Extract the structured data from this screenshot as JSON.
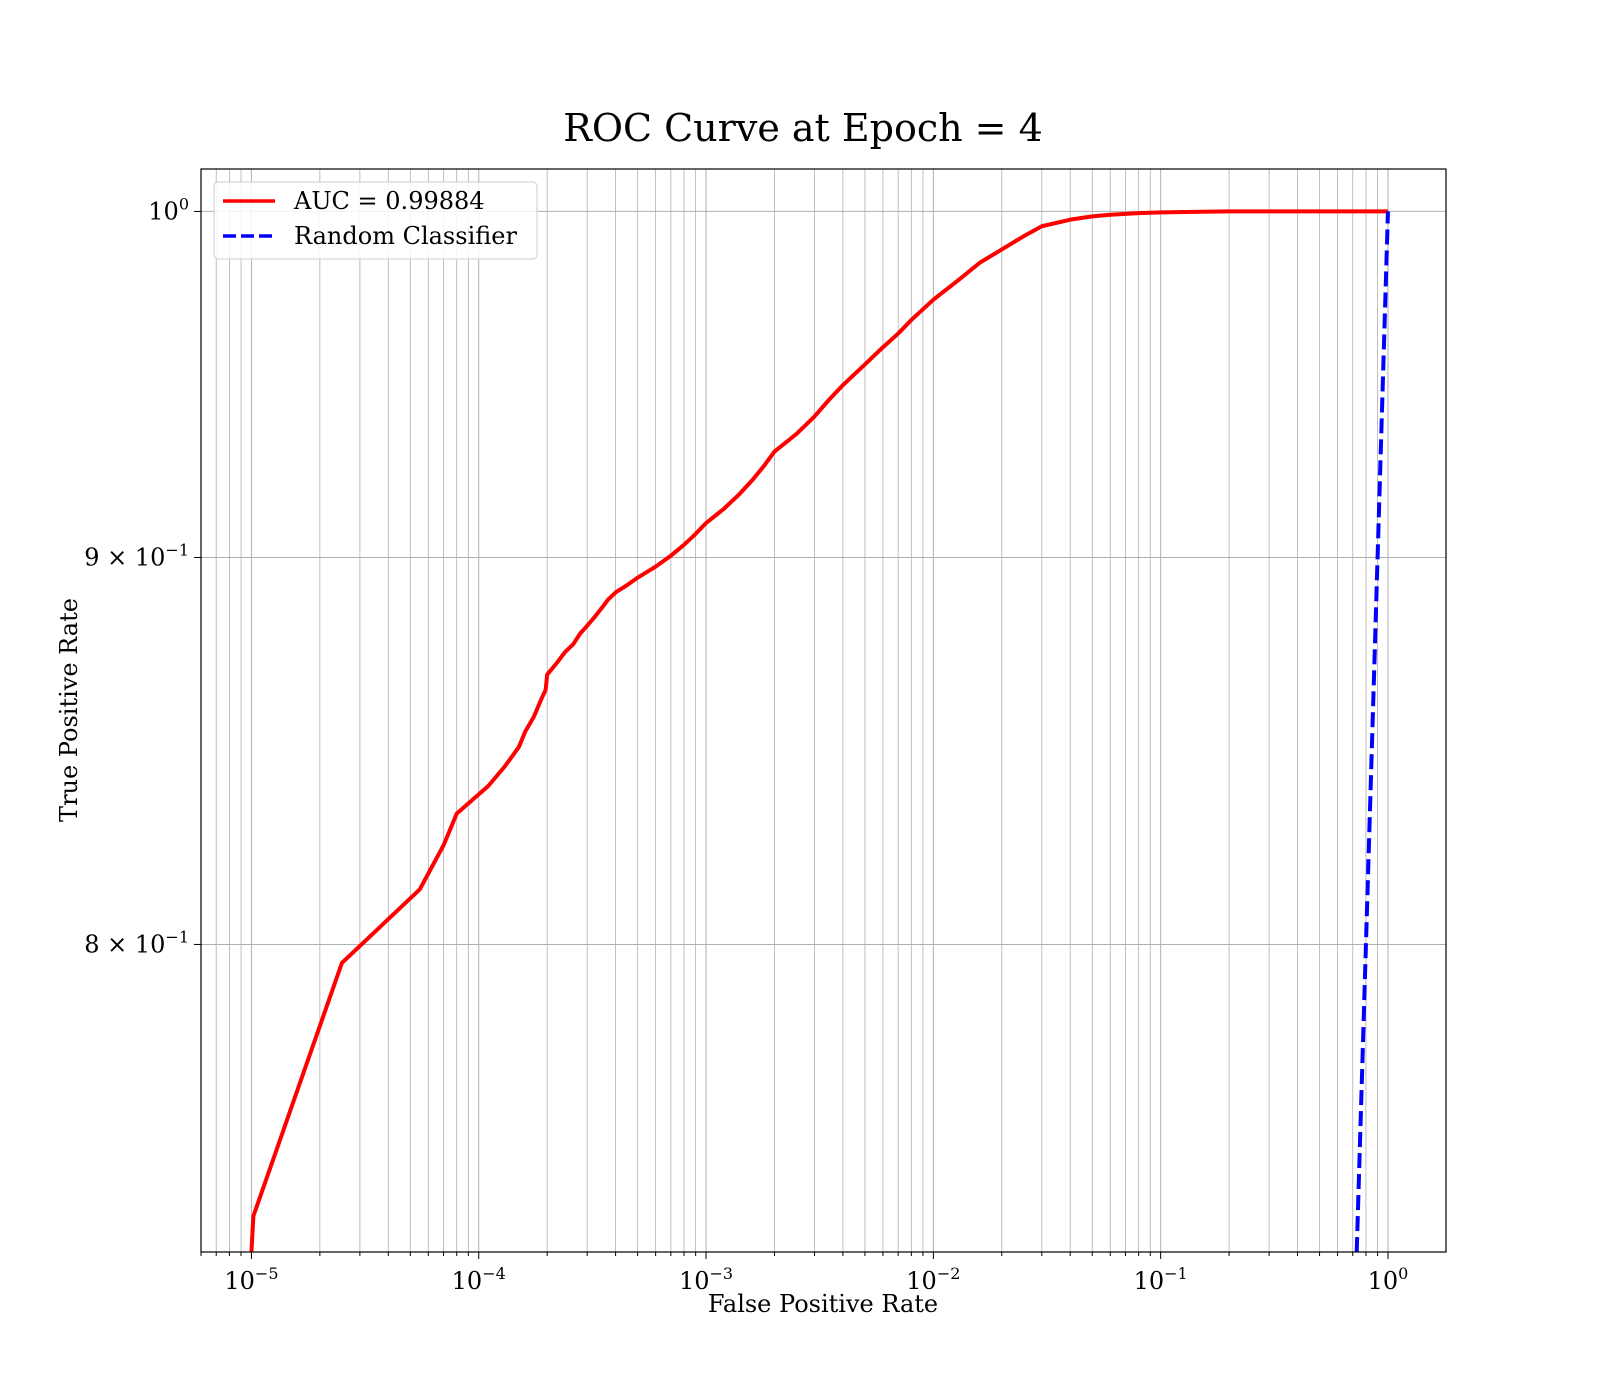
{
  "chart_data": {
    "type": "line",
    "title": "ROC Curve at Epoch = 4",
    "xlabel": "False Positive Rate",
    "ylabel": "True Positive Rate",
    "xscale": "log",
    "yscale": "log",
    "xlim": [
      6e-06,
      1.8
    ],
    "ylim": [
      0.7285,
      1.013
    ],
    "grid": true,
    "grid_which": "both",
    "legend_position": "top-left",
    "x_ticks": [
      {
        "value": 1e-05,
        "base": "10",
        "exp": "−5"
      },
      {
        "value": 0.0001,
        "base": "10",
        "exp": "−4"
      },
      {
        "value": 0.001,
        "base": "10",
        "exp": "−3"
      },
      {
        "value": 0.01,
        "base": "10",
        "exp": "−2"
      },
      {
        "value": 0.1,
        "base": "10",
        "exp": "−1"
      },
      {
        "value": 1,
        "base": "10",
        "exp": "0"
      }
    ],
    "y_ticks": [
      {
        "value": 1.0,
        "base": "10",
        "exp": "0"
      },
      {
        "value": 0.9,
        "base": "9 × 10",
        "exp": "−1"
      },
      {
        "value": 0.8,
        "base": "8 × 10",
        "exp": "−1"
      }
    ],
    "series": [
      {
        "name": "AUC = 0.99884",
        "color": "#ff0000",
        "style": "solid",
        "x": [
          1e-05,
          1.02e-05,
          2.5e-05,
          5.5e-05,
          7e-05,
          8e-05,
          0.00011,
          0.00013,
          0.00015,
          0.00016,
          0.000175,
          0.00019,
          0.000197,
          0.0002,
          0.00022,
          0.00024,
          0.00026,
          0.00028,
          0.0003,
          0.00032,
          0.00035,
          0.00037,
          0.0004,
          0.00045,
          0.0005,
          0.0006,
          0.0007,
          0.0008,
          0.0009,
          0.001,
          0.0012,
          0.0014,
          0.0016,
          0.0018,
          0.002,
          0.0025,
          0.003,
          0.0035,
          0.004,
          0.005,
          0.006,
          0.007,
          0.008,
          0.01,
          0.013,
          0.016,
          0.02,
          0.025,
          0.03,
          0.04,
          0.05,
          0.06,
          0.08,
          0.1,
          0.15,
          0.2,
          0.3,
          0.5,
          1.0
        ],
        "y": [
          0.7285,
          0.7365,
          0.7955,
          0.8135,
          0.8245,
          0.8325,
          0.8395,
          0.8445,
          0.8495,
          0.8535,
          0.8575,
          0.8625,
          0.8645,
          0.8685,
          0.8715,
          0.8745,
          0.8765,
          0.8795,
          0.8815,
          0.8835,
          0.8865,
          0.8885,
          0.8905,
          0.8925,
          0.8945,
          0.8975,
          0.9005,
          0.9035,
          0.9065,
          0.9095,
          0.9135,
          0.9175,
          0.9215,
          0.9255,
          0.9295,
          0.9345,
          0.9395,
          0.9445,
          0.9485,
          0.9545,
          0.9595,
          0.9635,
          0.9675,
          0.9735,
          0.9795,
          0.9845,
          0.9885,
          0.9925,
          0.9955,
          0.9975,
          0.9985,
          0.999,
          0.9995,
          0.9997,
          0.9999,
          1.0,
          1.0,
          1.0,
          1.0
        ]
      },
      {
        "name": "Random Classifier",
        "color": "#0000ff",
        "style": "dashed",
        "x": [
          0.7285,
          1.0
        ],
        "y": [
          0.7285,
          1.0
        ]
      }
    ]
  }
}
